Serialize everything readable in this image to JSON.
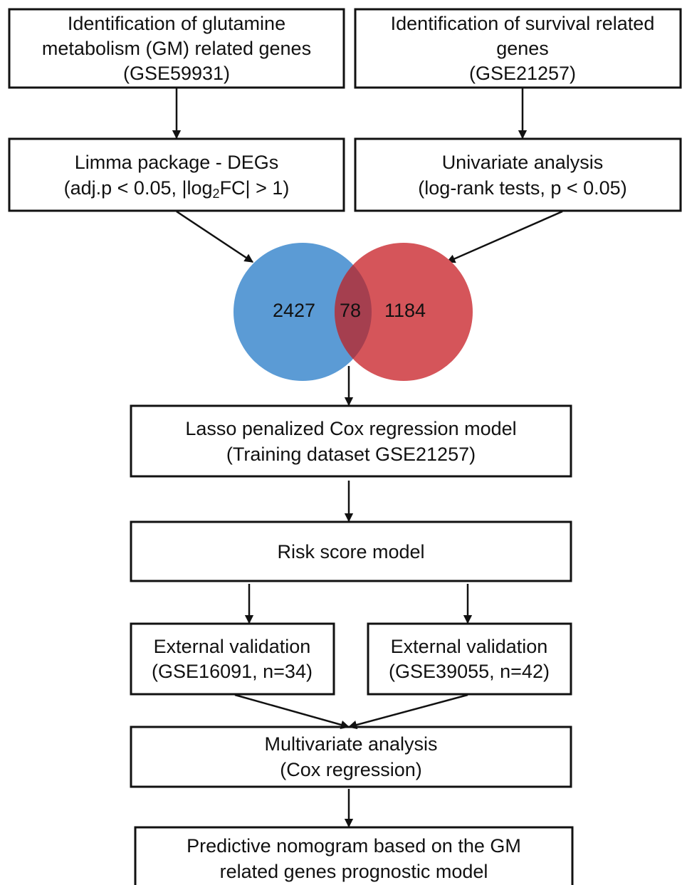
{
  "nodes": [
    {
      "lines": [
        "Identification of glutamine",
        "metabolism (GM) related genes",
        "(GSE59931)"
      ]
    },
    {
      "lines": [
        "Identification of survival related",
        "genes",
        "(GSE21257)"
      ]
    },
    {
      "lines": [
        "Limma package - DEGs"
      ],
      "formula": {
        "before": "(adj.p < 0.05, |log",
        "subscript": "2",
        "after": "FC| > 1)"
      }
    },
    {
      "lines": [
        "Univariate analysis",
        "(log-rank tests, p < 0.05)"
      ]
    },
    {
      "lines": [
        "Lasso penalized Cox regression model",
        "(Training dataset GSE21257)"
      ]
    },
    {
      "lines": [
        "Risk score model"
      ]
    },
    {
      "lines": [
        "External validation",
        "(GSE16091, n=34)"
      ]
    },
    {
      "lines": [
        "External validation",
        "(GSE39055, n=42)"
      ]
    },
    {
      "lines": [
        "Multivariate analysis",
        "(Cox regression)"
      ]
    },
    {
      "lines": [
        "Predictive nomogram based on the GM",
        "related genes prognostic model"
      ]
    }
  ],
  "venn": {
    "left": 2427,
    "overlap": 78,
    "right": 1184
  }
}
